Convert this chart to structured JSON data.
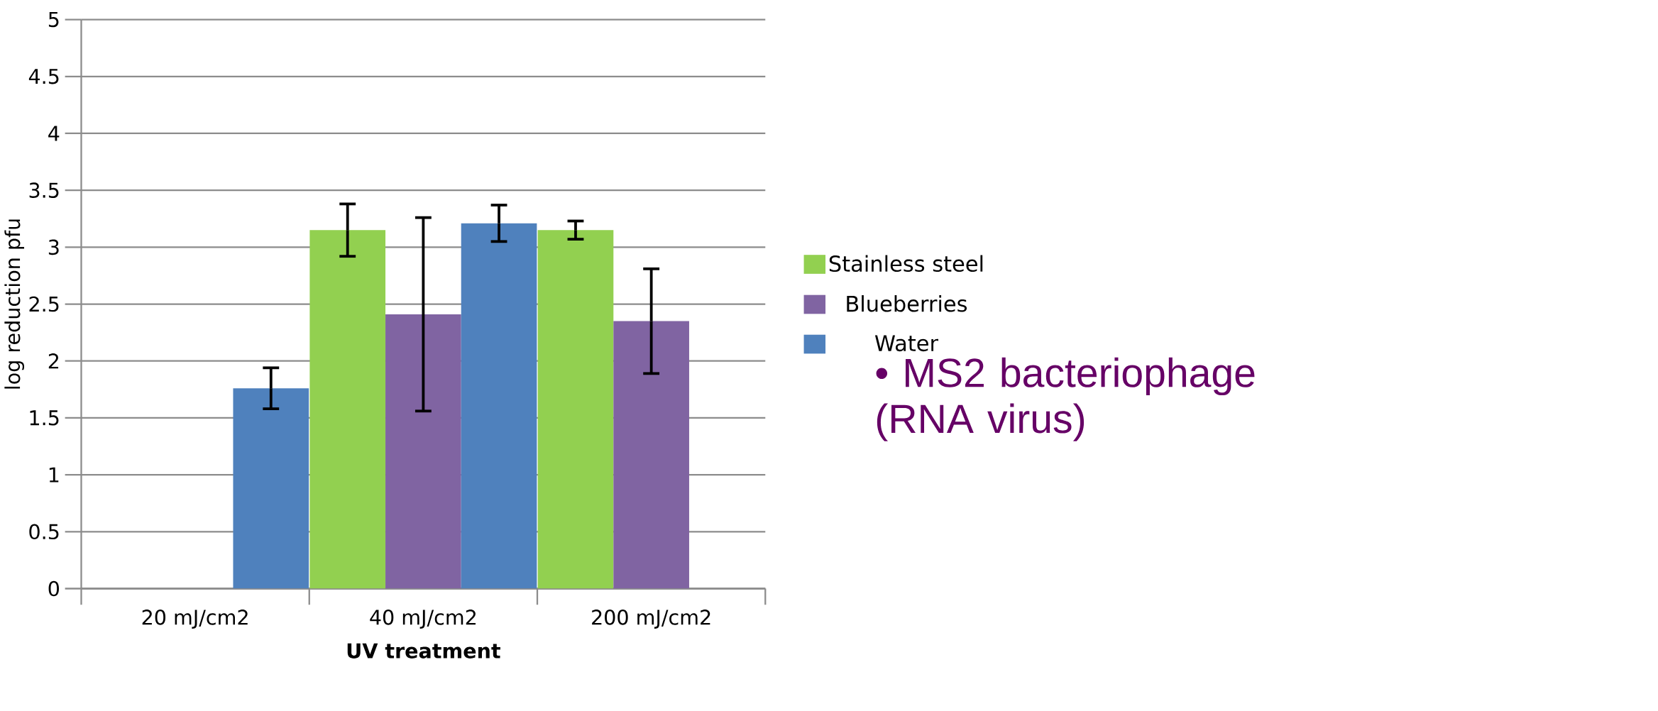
{
  "chart_data": {
    "type": "bar",
    "xlabel": "**UV treatment**",
    "ylabel": "log reduction pfu",
    "categories": [
      "20 mJ/cm2",
      "40 mJ/cm2",
      "200 mJ/cm2"
    ],
    "series": [
      {
        "name": "Stainless steel",
        "color": "#92d050",
        "values": [
          null,
          3.15,
          3.15
        ],
        "errors": [
          null,
          0.23,
          0.08
        ]
      },
      {
        "name": "Blueberries",
        "color": "#8064a2",
        "values": [
          null,
          2.41,
          2.35
        ],
        "errors": [
          null,
          0.85,
          0.46
        ]
      },
      {
        "name": "Water",
        "color": "#4f81bd",
        "values": [
          1.76,
          3.21,
          null
        ],
        "errors": [
          0.18,
          0.16,
          null
        ]
      }
    ],
    "ylim": [
      0,
      5
    ],
    "yticks": [
      0,
      0.5,
      1,
      1.5,
      2,
      2.5,
      3,
      3.5,
      4,
      4.5,
      5
    ],
    "grid": "y",
    "legend": "right",
    "annotations": [
      "• MS2 bacteriophage (RNA virus)"
    ]
  }
}
